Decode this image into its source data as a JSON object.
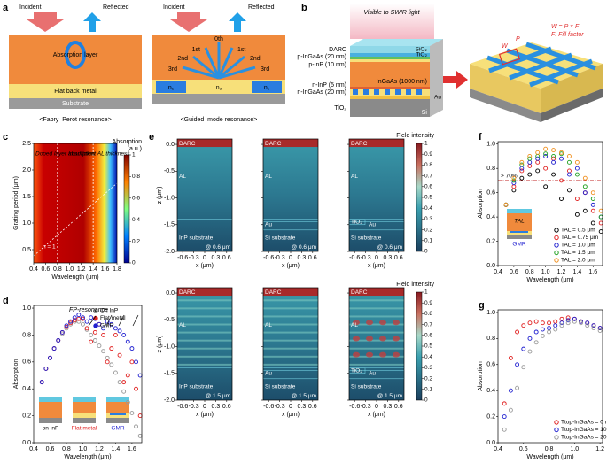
{
  "panels": {
    "a": {
      "letter": "a",
      "incident": "Incident",
      "reflected": "Reflected",
      "fp": {
        "absorption": "Absorption layer",
        "metal": "Flat back metal",
        "substrate": "Substrate",
        "caption": "<Fabry–Perot resonance>"
      },
      "gmr": {
        "orders": [
          "0th",
          "1st",
          "2nd",
          "3rd",
          "1st",
          "2nd",
          "3rd"
        ],
        "n": [
          "n₁",
          "n₂",
          "n₁"
        ],
        "caption": "<Guided–mode resonance>"
      }
    },
    "b": {
      "letter": "b",
      "light": "Visible to SWIR light",
      "layers": [
        "DARC",
        "p-InGaAs (20 nm)",
        "p-InP (10 nm)",
        "n-InP (5 nm)",
        "n-InGaAs (20 nm)",
        "TiO₂"
      ],
      "inner": [
        "SiO₂",
        "TiO₂",
        "InGaAs (1000 nm)",
        "Au",
        "Si"
      ],
      "period": "P",
      "width": "W",
      "formula": "W = P × F",
      "fill": "F: Fill factor"
    },
    "c": {
      "letter": "c",
      "type": "heatmap",
      "xlabel": "Wavelength (μm)",
      "ylabel": "Grating period (μm)",
      "xlim": [
        0.4,
        1.8
      ],
      "ylim": [
        0.25,
        2.5
      ],
      "xticks": [
        0.4,
        0.6,
        0.8,
        {
          "value": 1,
          "label": "1.0"
        },
        1.2,
        1.4,
        1.6,
        1.8
      ],
      "yticks": [
        0.5,
        {
          "value": 1,
          "label": "1.0"
        },
        1.5,
        {
          "value": 2,
          "label": "2.0"
        },
        2.5
      ],
      "colorbar": {
        "title": "Absorption",
        "unit": "(a.u.)",
        "clim": [
          0,
          1
        ],
        "ticks": [
          0,
          0.2,
          0.4,
          0.6,
          0.8,
          1
        ]
      },
      "annotations": [
        "Doped layer absorption",
        "Insufficient AL thickness",
        "n = 1"
      ],
      "guides": [
        0.8,
        1.4
      ]
    },
    "d": {
      "letter": "d",
      "type": "line",
      "xlabel": "Wavelength (μm)",
      "ylabel": "Absorption",
      "xlim": [
        0.4,
        1.72
      ],
      "ylim": [
        0,
        1.02
      ],
      "xticks": [
        0.4,
        0.6,
        0.8,
        {
          "value": 1,
          "label": "1.0"
        },
        1.2,
        1.4,
        1.6
      ],
      "yticks": [
        {
          "value": 0,
          "label": "0.0"
        },
        0.2,
        0.4,
        0.6,
        0.8,
        {
          "value": 1,
          "label": "1.0"
        }
      ],
      "legend": "upper right",
      "annotation": "FP-resonance",
      "insets": [
        "on InP",
        "Flat metal",
        "GMR"
      ],
      "inset_colors": [
        "#000000",
        "#e02020",
        "#2020d0"
      ],
      "x": [
        0.5,
        0.55,
        0.6,
        0.65,
        0.7,
        0.75,
        0.8,
        0.85,
        0.9,
        0.95,
        1.0,
        1.05,
        1.1,
        1.15,
        1.2,
        1.25,
        1.3,
        1.35,
        1.4,
        1.45,
        1.5,
        1.55,
        1.6,
        1.65,
        1.7
      ],
      "series": [
        {
          "name": "On InP",
          "color": "#999999",
          "values": [
            0.45,
            0.55,
            0.63,
            0.7,
            0.76,
            0.81,
            0.85,
            0.88,
            0.9,
            0.9,
            0.88,
            0.84,
            0.8,
            0.76,
            0.72,
            0.68,
            0.63,
            0.58,
            0.52,
            0.45,
            0.38,
            0.3,
            0.22,
            0.12,
            0.05
          ]
        },
        {
          "name": "Flat metal",
          "color": "#e02020",
          "values": [
            0.45,
            0.55,
            0.63,
            0.7,
            0.76,
            0.82,
            0.86,
            0.89,
            0.91,
            0.92,
            0.92,
            0.85,
            0.75,
            0.82,
            0.88,
            0.8,
            0.6,
            0.7,
            0.8,
            0.65,
            0.45,
            0.5,
            0.6,
            0.4,
            0.2
          ]
        },
        {
          "name": "GMR",
          "color": "#2020d0",
          "values": [
            0.45,
            0.55,
            0.63,
            0.7,
            0.76,
            0.82,
            0.87,
            0.9,
            0.93,
            0.95,
            0.93,
            0.9,
            0.93,
            0.92,
            0.88,
            0.85,
            0.9,
            0.88,
            0.85,
            0.83,
            0.8,
            0.75,
            0.7,
            0.6,
            0.5
          ]
        }
      ]
    },
    "e": {
      "letter": "e",
      "type": "field",
      "xlabel": "x (μm)",
      "ylabel": "z (μm)",
      "xlim": [
        -0.75,
        0.75
      ],
      "ylim": [
        -2,
        0.1
      ],
      "xticks": [
        -0.6,
        -0.3,
        0,
        0.3,
        0.6
      ],
      "yticks": [
        {
          "value": 0,
          "label": "0.0"
        },
        -0.5,
        {
          "value": -1,
          "label": "-1.0"
        },
        -1.5,
        {
          "value": -2,
          "label": "-2.0"
        }
      ],
      "colorbar": {
        "title": "Field intensity",
        "clim": [
          0,
          1
        ],
        "ticks": [
          0,
          0.1,
          0.2,
          0.3,
          0.4,
          0.5,
          0.6,
          0.7,
          0.8,
          0.9,
          1
        ]
      },
      "fields": [
        {
          "top": "DARC",
          "layer": "AL",
          "substrate": "InP substrate",
          "wavelength": "@ 0.6 μm"
        },
        {
          "top": "DARC",
          "layer": "AL",
          "metal": "Au",
          "substrate": "Si substrate",
          "wavelength": "@ 0.6 μm"
        },
        {
          "top": "DARC",
          "layer": "AL",
          "grating": "TiO₂",
          "metal": "Au",
          "substrate": "Si substrate",
          "wavelength": "@ 0.6 μm"
        },
        {
          "top": "DARC",
          "layer": "AL",
          "substrate": "InP substrate",
          "wavelength": "@ 1.5 μm"
        },
        {
          "top": "DARC",
          "layer": "AL",
          "metal": "Au",
          "substrate": "Si substrate",
          "wavelength": "@ 1.5 μm"
        },
        {
          "top": "DARC",
          "layer": "AL",
          "grating": "TiO₂",
          "metal": "Au",
          "substrate": "Si substrate",
          "wavelength": "@ 1.5 μm"
        }
      ]
    },
    "f": {
      "letter": "f",
      "type": "line",
      "xlabel": "Wavelength (μm)",
      "ylabel": "Absorption",
      "xlim": [
        0.4,
        1.72
      ],
      "ylim": [
        0,
        1.02
      ],
      "xticks": [
        0.4,
        0.6,
        0.8,
        {
          "value": 1,
          "label": "1.0"
        },
        1.2,
        1.4,
        1.6
      ],
      "yticks": [
        {
          "value": 0,
          "label": "0.0"
        },
        0.2,
        0.4,
        0.6,
        0.8,
        {
          "value": 1,
          "label": "1.0"
        }
      ],
      "legend": "lower right",
      "threshold": 0.7,
      "threshold_label": "> 70%",
      "insets": [
        "TAL",
        "GMR"
      ],
      "x": [
        0.5,
        0.6,
        0.7,
        0.8,
        0.9,
        1.0,
        1.1,
        1.2,
        1.3,
        1.4,
        1.5,
        1.6,
        1.7
      ],
      "series": [
        {
          "name": "TAL = 0.5 μm",
          "color": "#000000",
          "values": [
            0.5,
            0.62,
            0.72,
            0.75,
            0.78,
            0.65,
            0.75,
            0.55,
            0.62,
            0.42,
            0.45,
            0.35,
            0.28
          ]
        },
        {
          "name": "TAL = 0.75 μm",
          "color": "#e02020",
          "values": [
            0.5,
            0.65,
            0.78,
            0.82,
            0.85,
            0.8,
            0.88,
            0.7,
            0.78,
            0.55,
            0.6,
            0.45,
            0.35
          ]
        },
        {
          "name": "TAL = 1.0 μm",
          "color": "#2020d0",
          "values": [
            0.5,
            0.68,
            0.8,
            0.85,
            0.88,
            0.9,
            0.85,
            0.88,
            0.75,
            0.8,
            0.6,
            0.5,
            0.4
          ]
        },
        {
          "name": "TAL = 1.5 μm",
          "color": "#20a020",
          "values": [
            0.5,
            0.7,
            0.83,
            0.88,
            0.9,
            0.92,
            0.9,
            0.92,
            0.85,
            0.75,
            0.65,
            0.55,
            0.4
          ]
        },
        {
          "name": "TAL = 2.0 μm",
          "color": "#f09020",
          "values": [
            0.5,
            0.72,
            0.85,
            0.9,
            0.93,
            0.96,
            0.95,
            0.93,
            0.9,
            0.85,
            0.72,
            0.6,
            0.45
          ]
        }
      ]
    },
    "g": {
      "letter": "g",
      "type": "line",
      "xlabel": "Wavelength (μm)",
      "ylabel": "Absorption",
      "xlim": [
        0.4,
        1.22
      ],
      "ylim": [
        0,
        1.02
      ],
      "xticks": [
        0.4,
        0.6,
        0.8,
        {
          "value": 1,
          "label": "1.0"
        },
        1.2
      ],
      "yticks": [
        {
          "value": 0,
          "label": "0.0"
        },
        0.2,
        0.4,
        0.6,
        0.8,
        {
          "value": 1,
          "label": "1.0"
        }
      ],
      "legend": "lower right",
      "x": [
        0.45,
        0.5,
        0.55,
        0.6,
        0.65,
        0.7,
        0.75,
        0.8,
        0.85,
        0.9,
        0.95,
        1.0,
        1.05,
        1.1,
        1.15,
        1.2
      ],
      "series": [
        {
          "name": "Ttop-InGaAs = 0 nm",
          "color": "#e02020",
          "values": [
            0.3,
            0.65,
            0.85,
            0.9,
            0.92,
            0.93,
            0.92,
            0.92,
            0.93,
            0.95,
            0.96,
            0.95,
            0.93,
            0.92,
            0.9,
            0.88
          ]
        },
        {
          "name": "Ttop-InGaAs = 10 nm",
          "color": "#2020d0",
          "values": [
            0.2,
            0.4,
            0.6,
            0.72,
            0.8,
            0.85,
            0.87,
            0.88,
            0.9,
            0.92,
            0.94,
            0.95,
            0.93,
            0.92,
            0.9,
            0.88
          ]
        },
        {
          "name": "Ttop-InGaAs = 20 nm",
          "color": "#999999",
          "values": [
            0.1,
            0.25,
            0.42,
            0.58,
            0.7,
            0.77,
            0.82,
            0.85,
            0.87,
            0.9,
            0.92,
            0.93,
            0.92,
            0.9,
            0.88,
            0.86
          ]
        }
      ]
    }
  }
}
